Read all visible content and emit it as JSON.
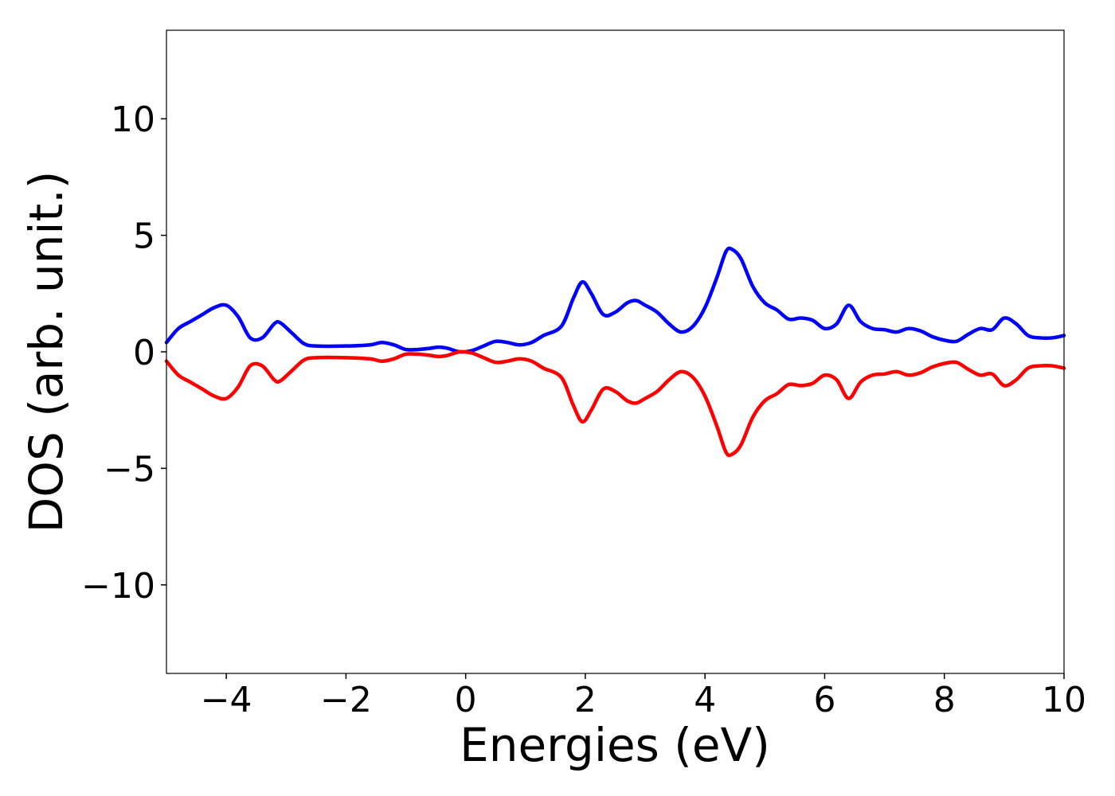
{
  "chart_data": {
    "type": "line",
    "xlabel": "Energies (eV)",
    "ylabel": "DOS (arb. unit.)",
    "xlim": [
      -5,
      10
    ],
    "ylim": [
      -13.8,
      13.8
    ],
    "xticks": [
      -4,
      -2,
      0,
      2,
      4,
      6,
      8,
      10
    ],
    "xtick_labels": [
      "−4",
      "−2",
      "0",
      "2",
      "4",
      "6",
      "8",
      "10"
    ],
    "yticks": [
      -10,
      -5,
      0,
      5,
      10
    ],
    "ytick_labels": [
      "−10",
      "−5",
      "0",
      "5",
      "10"
    ],
    "grid": false,
    "legend": "none",
    "series": [
      {
        "color": "#0000ff",
        "x": [
          -5.0,
          -4.8,
          -4.6,
          -4.4,
          -4.2,
          -4.0,
          -3.8,
          -3.6,
          -3.4,
          -3.2,
          -3.1,
          -2.9,
          -2.7,
          -2.5,
          -2.0,
          -1.6,
          -1.4,
          -1.2,
          -1.0,
          -0.8,
          -0.6,
          -0.45,
          -0.3,
          -0.1,
          0.1,
          0.3,
          0.5,
          0.7,
          0.9,
          1.1,
          1.3,
          1.6,
          1.8,
          1.95,
          2.1,
          2.3,
          2.5,
          2.7,
          2.85,
          3.0,
          3.2,
          3.4,
          3.6,
          3.8,
          4.0,
          4.2,
          4.35,
          4.45,
          4.6,
          4.8,
          5.0,
          5.2,
          5.4,
          5.6,
          5.8,
          6.0,
          6.2,
          6.4,
          6.6,
          6.8,
          7.0,
          7.2,
          7.4,
          7.6,
          7.8,
          8.0,
          8.2,
          8.4,
          8.6,
          8.8,
          9.0,
          9.2,
          9.4,
          9.6,
          9.8,
          10.0
        ],
        "y": [
          0.4,
          1.0,
          1.3,
          1.6,
          1.9,
          2.0,
          1.5,
          0.6,
          0.6,
          1.2,
          1.25,
          0.8,
          0.35,
          0.25,
          0.25,
          0.3,
          0.4,
          0.3,
          0.1,
          0.1,
          0.15,
          0.2,
          0.15,
          0.0,
          0.05,
          0.25,
          0.45,
          0.4,
          0.3,
          0.4,
          0.7,
          1.1,
          2.3,
          3.0,
          2.5,
          1.6,
          1.7,
          2.1,
          2.2,
          2.0,
          1.7,
          1.2,
          0.85,
          1.1,
          1.9,
          3.2,
          4.3,
          4.4,
          4.0,
          2.8,
          2.1,
          1.8,
          1.4,
          1.45,
          1.35,
          1.0,
          1.2,
          2.0,
          1.3,
          1.0,
          0.95,
          0.85,
          1.0,
          0.9,
          0.65,
          0.5,
          0.45,
          0.75,
          1.0,
          0.95,
          1.45,
          1.2,
          0.7,
          0.6,
          0.6,
          0.7
        ]
      },
      {
        "color": "#ff0000",
        "x": [
          -5.0,
          -4.8,
          -4.6,
          -4.4,
          -4.2,
          -4.0,
          -3.8,
          -3.6,
          -3.4,
          -3.2,
          -3.1,
          -2.9,
          -2.7,
          -2.5,
          -2.0,
          -1.6,
          -1.4,
          -1.2,
          -1.0,
          -0.8,
          -0.6,
          -0.45,
          -0.3,
          -0.1,
          0.1,
          0.3,
          0.5,
          0.7,
          0.9,
          1.1,
          1.3,
          1.6,
          1.8,
          1.95,
          2.1,
          2.3,
          2.5,
          2.7,
          2.85,
          3.0,
          3.2,
          3.4,
          3.6,
          3.8,
          4.0,
          4.2,
          4.35,
          4.45,
          4.6,
          4.8,
          5.0,
          5.2,
          5.4,
          5.6,
          5.8,
          6.0,
          6.2,
          6.4,
          6.6,
          6.8,
          7.0,
          7.2,
          7.4,
          7.6,
          7.8,
          8.0,
          8.2,
          8.4,
          8.6,
          8.8,
          9.0,
          9.2,
          9.4,
          9.6,
          9.8,
          10.0
        ],
        "y": [
          -0.4,
          -1.0,
          -1.3,
          -1.6,
          -1.9,
          -2.0,
          -1.5,
          -0.6,
          -0.6,
          -1.2,
          -1.25,
          -0.8,
          -0.35,
          -0.25,
          -0.25,
          -0.3,
          -0.4,
          -0.3,
          -0.1,
          -0.1,
          -0.15,
          -0.2,
          -0.15,
          0.0,
          -0.05,
          -0.25,
          -0.45,
          -0.4,
          -0.3,
          -0.4,
          -0.7,
          -1.1,
          -2.3,
          -3.0,
          -2.5,
          -1.6,
          -1.7,
          -2.1,
          -2.2,
          -2.0,
          -1.7,
          -1.2,
          -0.85,
          -1.1,
          -1.9,
          -3.2,
          -4.3,
          -4.4,
          -4.0,
          -2.8,
          -2.1,
          -1.8,
          -1.4,
          -1.45,
          -1.35,
          -1.0,
          -1.2,
          -2.0,
          -1.3,
          -1.0,
          -0.95,
          -0.85,
          -1.0,
          -0.9,
          -0.65,
          -0.5,
          -0.45,
          -0.75,
          -1.0,
          -0.95,
          -1.45,
          -1.2,
          -0.7,
          -0.6,
          -0.6,
          -0.7
        ]
      }
    ]
  }
}
